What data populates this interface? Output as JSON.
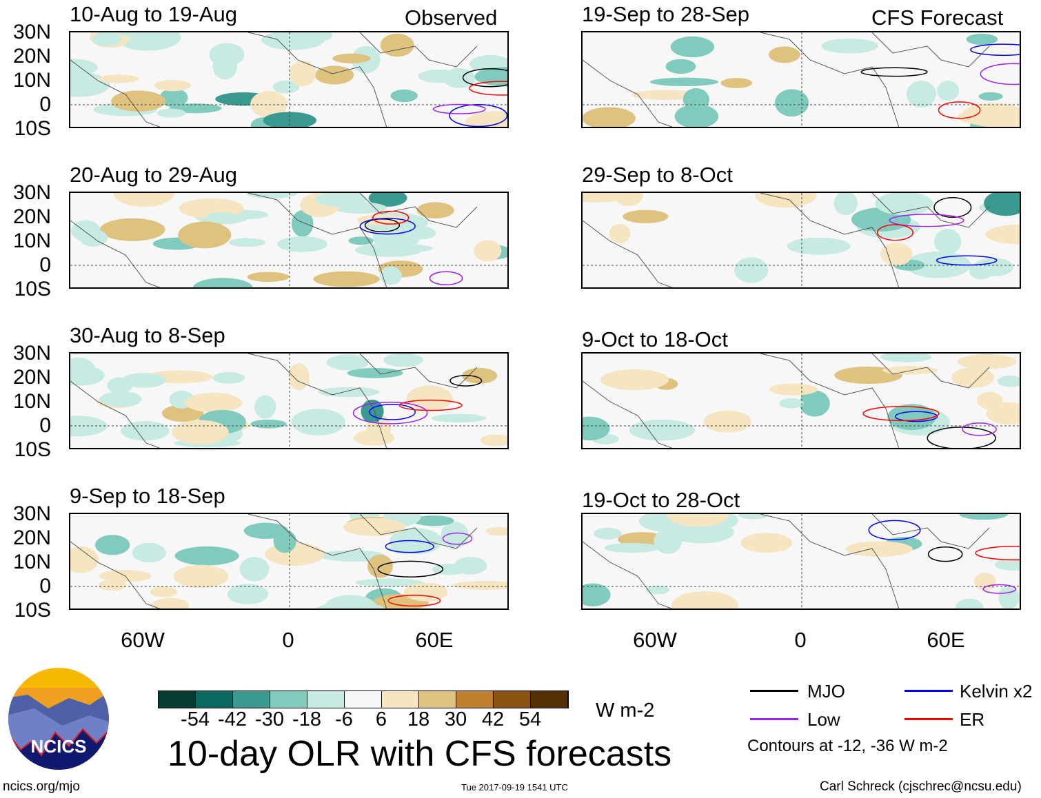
{
  "header": {
    "observed_label": "Observed",
    "forecast_label": "CFS Forecast"
  },
  "panels": [
    {
      "title": "10-Aug to 19-Aug",
      "kind": "observed"
    },
    {
      "title": "20-Aug to 29-Aug",
      "kind": "observed"
    },
    {
      "title": "30-Aug to 8-Sep",
      "kind": "observed"
    },
    {
      "title": "9-Sep to 18-Sep",
      "kind": "observed"
    },
    {
      "title": "19-Sep to 28-Sep",
      "kind": "forecast"
    },
    {
      "title": "29-Sep to 8-Oct",
      "kind": "forecast"
    },
    {
      "title": "9-Oct to 18-Oct",
      "kind": "forecast"
    },
    {
      "title": "19-Oct to 28-Oct",
      "kind": "forecast"
    }
  ],
  "axes": {
    "y_labels": [
      "30N",
      "20N",
      "10N",
      "0",
      "10S"
    ],
    "x_labels": [
      "60W",
      "0",
      "60E"
    ]
  },
  "colorbar": {
    "colors": [
      "#053d33",
      "#0b6a60",
      "#3a9a8f",
      "#80cbbd",
      "#c7eae2",
      "#f7f7f7",
      "#f5e5c0",
      "#dfc27d",
      "#bf812d",
      "#8c5410",
      "#543005"
    ],
    "tick_labels": [
      "-54",
      "-42",
      "-30",
      "-18",
      "-6",
      "6",
      "18",
      "30",
      "42",
      "54"
    ],
    "units": "W m-2"
  },
  "title": "10-day OLR with CFS forecasts",
  "legend": {
    "items": [
      {
        "label": "MJO",
        "color": "#000000"
      },
      {
        "label": "Kelvin x2",
        "color": "#0000ff"
      },
      {
        "label": "Low",
        "color": "#a020f0"
      },
      {
        "label": "ER",
        "color": "#ff0000"
      }
    ],
    "note": "Contours at -12, -36 W m-2"
  },
  "logo": {
    "text": "NCICS"
  },
  "footer": {
    "url": "ncics.org/mjo",
    "timestamp": "Tue 2017-09-19 1541 UTC",
    "credit": "Carl Schreck (cjschrec@ncsu.edu)"
  }
}
